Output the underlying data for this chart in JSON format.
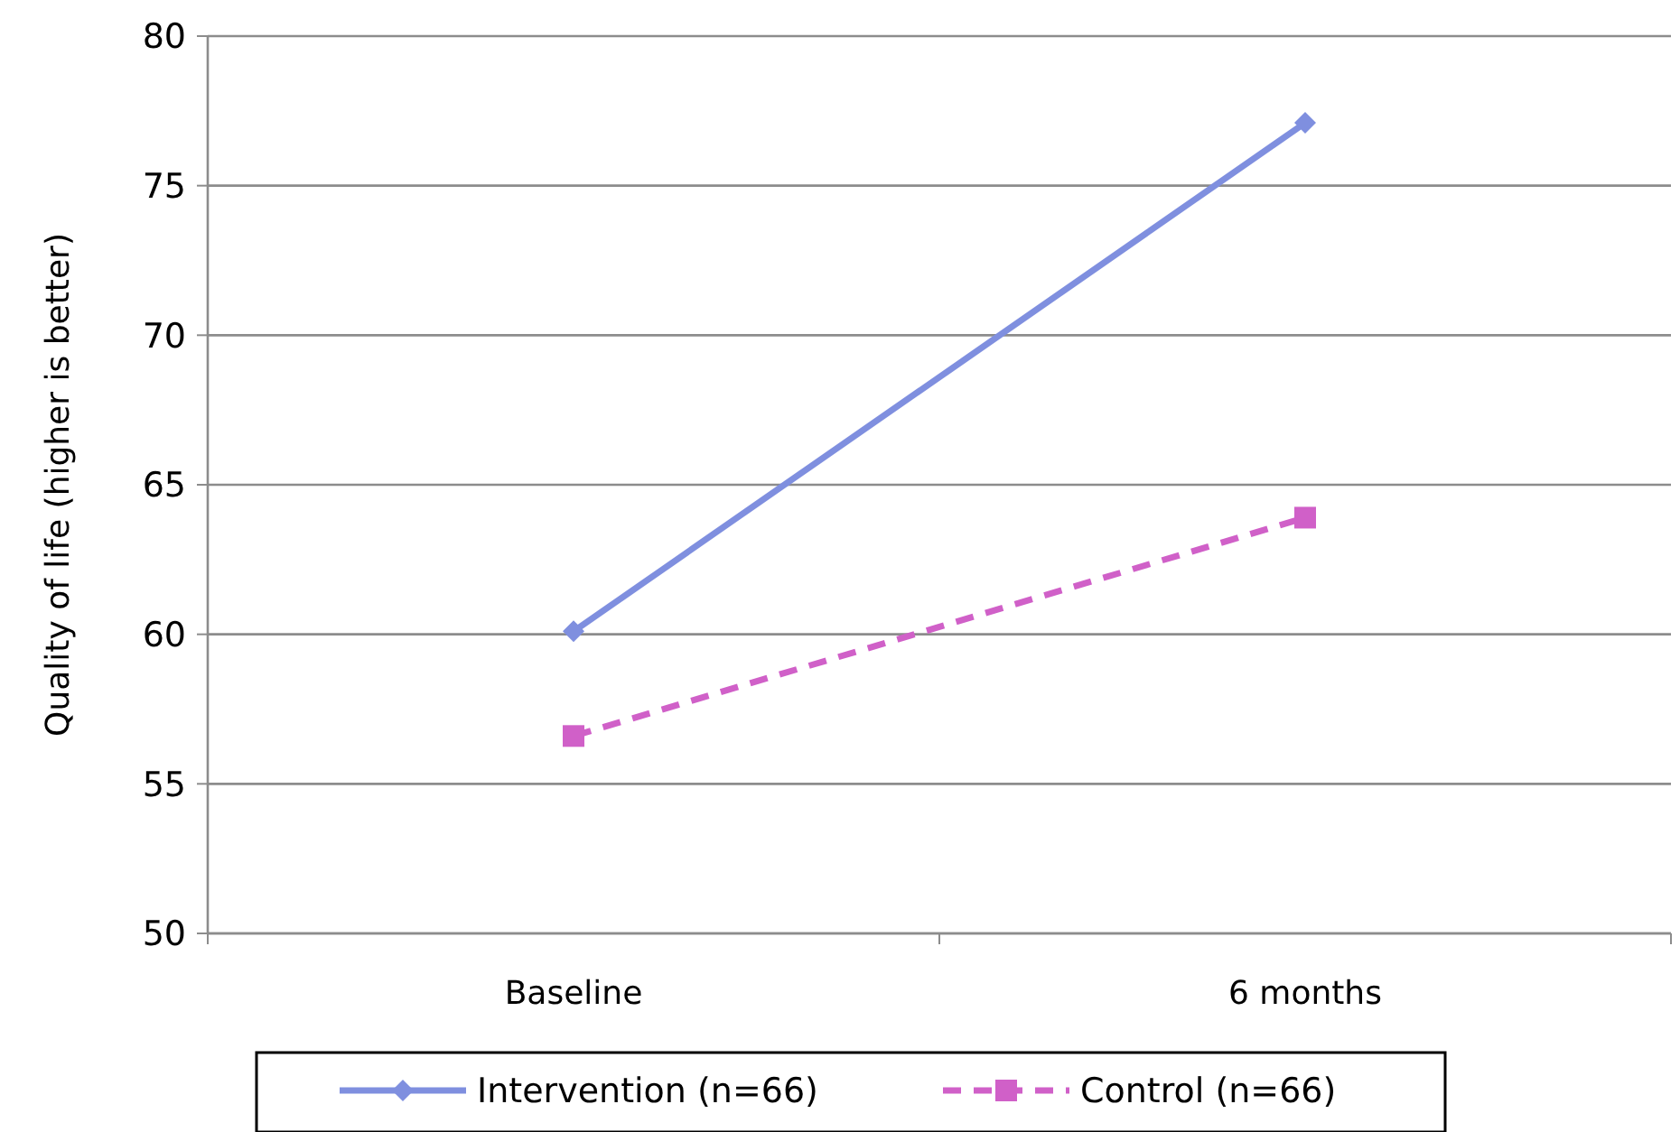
{
  "chart_data": {
    "type": "line",
    "ylabel": "Quality of life (higher is better)",
    "categories": [
      "Baseline",
      "6 months"
    ],
    "series": [
      {
        "name": "Intervention (n=66)",
        "color": "#7f8fdf",
        "values": [
          60.1,
          77.1
        ],
        "marker": "diamond",
        "line_style": "solid"
      },
      {
        "name": "Control (n=66)",
        "color": "#d060c8",
        "values": [
          56.6,
          63.9
        ],
        "marker": "square",
        "line_style": "dashed"
      }
    ],
    "ylim": [
      50,
      80
    ],
    "yticks": [
      50,
      55,
      60,
      65,
      70,
      75,
      80
    ],
    "grid": "y",
    "legend": "bottom"
  }
}
